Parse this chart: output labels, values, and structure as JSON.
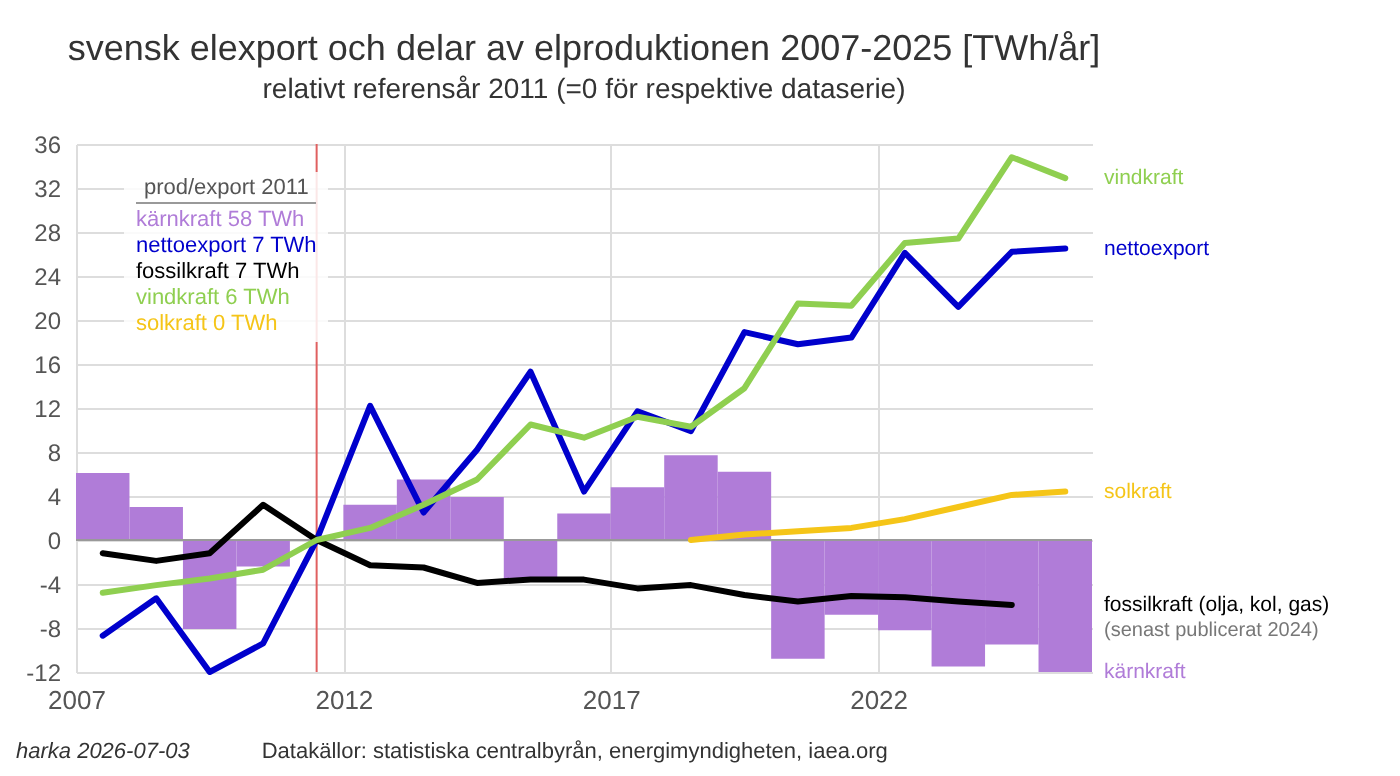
{
  "chart_data": {
    "type": "line",
    "title": "svensk elexport och delar av elproduktionen 2007-2025 [TWh/år]",
    "subtitle": "relativt referensår 2011 (=0 för respektive dataserie)",
    "x": [
      2007.5,
      2008.5,
      2009.5,
      2010.5,
      2011.5,
      2012.5,
      2013.5,
      2014.5,
      2015.5,
      2016.5,
      2017.5,
      2018.5,
      2019.5,
      2020.5,
      2021.5,
      2022.5,
      2023.5,
      2024.5,
      2025.5
    ],
    "series": [
      {
        "name": "kärnkraft",
        "type": "bar",
        "color": "#b07cd8",
        "values": [
          6.1,
          3.0,
          -8.1,
          -2.4,
          0,
          3.2,
          5.5,
          3.9,
          -3.6,
          2.4,
          4.8,
          7.7,
          6.2,
          -10.8,
          -6.8,
          -8.2,
          -11.5,
          -9.5,
          -12
        ]
      },
      {
        "name": "nettoexport",
        "type": "line",
        "color": "#0000cc",
        "values": [
          -8.7,
          -5.3,
          -12,
          -9.4,
          0,
          12.2,
          2.5,
          8.2,
          15.3,
          4.4,
          11.7,
          9.9,
          18.9,
          17.8,
          18.4,
          26.1,
          21.2,
          26.2,
          26.5
        ]
      },
      {
        "name": "fossilkraft (olja, kol, gas)",
        "type": "line",
        "color": "#000000",
        "values": [
          -1.2,
          -1.9,
          -1.2,
          3.2,
          0,
          -2.3,
          -2.5,
          -3.9,
          -3.6,
          -3.6,
          -4.4,
          -4.1,
          -5.0,
          -5.6,
          -5.1,
          -5.2,
          -5.6,
          -5.9,
          null
        ]
      },
      {
        "name": "vindkraft",
        "type": "line",
        "color": "#8fcf50",
        "values": [
          -4.8,
          -4.1,
          -3.5,
          -2.7,
          0,
          1.1,
          3.2,
          5.5,
          10.5,
          9.3,
          11.2,
          10.3,
          13.8,
          21.5,
          21.3,
          27.0,
          27.4,
          34.8,
          32.9
        ]
      },
      {
        "name": "solkraft",
        "type": "line",
        "color": "#f5c518",
        "values": [
          null,
          null,
          null,
          null,
          null,
          null,
          null,
          null,
          null,
          null,
          null,
          0,
          0.5,
          0.8,
          1.1,
          1.9,
          3.0,
          4.1,
          4.4
        ]
      }
    ],
    "xlim": [
      2007,
      2026
    ],
    "xticks": [
      2007,
      2012,
      2017,
      2022
    ],
    "ylim": [
      -12,
      36
    ],
    "yticks": [
      -12,
      -8,
      -4,
      0,
      4,
      8,
      12,
      16,
      20,
      24,
      28,
      32,
      36
    ],
    "grid": true,
    "legend": false,
    "ref_lines": [
      {
        "axis": "x",
        "value": 2011.5,
        "color": "#e06060"
      }
    ],
    "annotations": [
      "prod/export 2011",
      "kärnkraft 58 TWh",
      "nettoexport 7 TWh",
      "fossilkraft 7 TWh",
      "vindkraft 6 TWh",
      "solkraft 0 TWh",
      "(senast publicerat 2024)",
      "harka 2026-07-03",
      "Datakällor: statistiska centralbyrån, energimyndigheten, iaea.org"
    ]
  }
}
